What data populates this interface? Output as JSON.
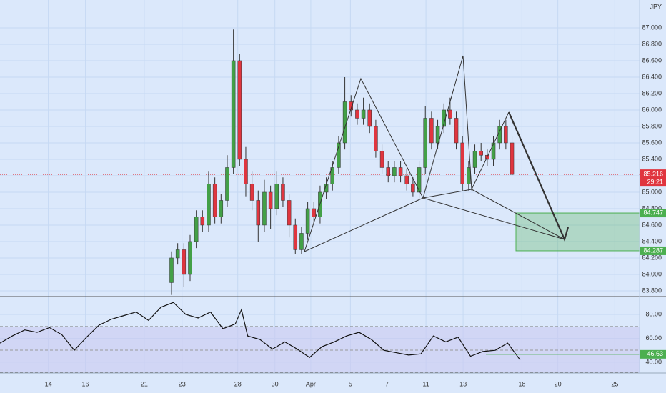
{
  "chart_data": [
    {
      "type": "candlestick",
      "currency": "JPY",
      "x": [
        0,
        1,
        2,
        3,
        4,
        5,
        6,
        7,
        8,
        9,
        10,
        11,
        12,
        13,
        14,
        15,
        16,
        17,
        18,
        19,
        20,
        21,
        22,
        23,
        24,
        25,
        26,
        27,
        28,
        29,
        30,
        31,
        32,
        33,
        34,
        35,
        36,
        37,
        38,
        39,
        40,
        41,
        42,
        43,
        44,
        45,
        46,
        47,
        48,
        49,
        50,
        51,
        52,
        53,
        54,
        55
      ],
      "open": [
        83.9,
        84.2,
        84.3,
        84.0,
        84.4,
        84.7,
        84.6,
        85.1,
        84.7,
        84.9,
        85.3,
        86.6,
        85.4,
        85.1,
        84.9,
        84.6,
        85.0,
        84.8,
        85.1,
        84.9,
        84.6,
        84.3,
        84.5,
        84.8,
        84.7,
        85.0,
        85.1,
        85.3,
        85.6,
        86.1,
        86.0,
        85.9,
        86.0,
        85.8,
        85.5,
        85.3,
        85.2,
        85.3,
        85.2,
        85.1,
        85.0,
        85.3,
        85.9,
        85.6,
        85.8,
        86.0,
        85.9,
        85.6,
        85.1,
        85.3,
        85.5,
        85.45,
        85.4,
        85.6,
        85.8,
        85.6
      ],
      "high": [
        84.28,
        84.38,
        84.38,
        84.48,
        84.78,
        84.78,
        85.25,
        85.18,
        84.98,
        85.45,
        86.98,
        86.68,
        85.55,
        85.25,
        85.02,
        85.15,
        85.08,
        85.25,
        85.18,
        84.98,
        84.68,
        84.58,
        84.88,
        84.88,
        85.08,
        85.18,
        85.38,
        85.68,
        86.4,
        86.18,
        86.08,
        86.15,
        86.08,
        85.88,
        85.58,
        85.38,
        85.38,
        85.38,
        85.28,
        85.18,
        85.38,
        86.05,
        85.98,
        85.88,
        86.08,
        86.15,
        85.98,
        85.68,
        85.38,
        85.58,
        85.6,
        85.52,
        85.68,
        85.88,
        85.88,
        85.68
      ],
      "low": [
        83.75,
        84.12,
        83.85,
        83.92,
        84.32,
        84.52,
        84.52,
        84.62,
        84.62,
        84.82,
        85.22,
        85.32,
        84.95,
        84.78,
        84.4,
        84.52,
        84.55,
        84.72,
        84.82,
        84.45,
        84.25,
        84.25,
        84.42,
        84.62,
        84.62,
        84.92,
        85.02,
        85.22,
        85.52,
        85.92,
        85.82,
        85.82,
        85.72,
        85.42,
        85.22,
        85.12,
        85.12,
        85.12,
        85.02,
        84.95,
        84.92,
        85.22,
        85.52,
        85.52,
        85.72,
        85.82,
        85.52,
        85.02,
        85.02,
        85.22,
        85.38,
        85.32,
        85.32,
        85.52,
        85.52,
        85.2
      ],
      "close": [
        84.2,
        84.3,
        84.0,
        84.4,
        84.7,
        84.6,
        85.1,
        84.7,
        84.9,
        85.3,
        86.6,
        85.4,
        85.1,
        84.9,
        84.6,
        85.0,
        84.8,
        85.1,
        84.9,
        84.6,
        84.3,
        84.5,
        84.8,
        84.7,
        85.0,
        85.1,
        85.3,
        85.6,
        86.1,
        86.0,
        85.9,
        86.0,
        85.8,
        85.5,
        85.3,
        85.2,
        85.3,
        85.2,
        85.1,
        85.0,
        85.3,
        85.9,
        85.6,
        85.8,
        86.0,
        85.9,
        85.6,
        85.1,
        85.3,
        85.5,
        85.45,
        85.4,
        85.6,
        85.8,
        85.6,
        85.216
      ],
      "up_color": "#43a047",
      "down_color": "#e0353f",
      "last_price": 85.216,
      "countdown": "29:21",
      "zone": {
        "top": 84.747,
        "bottom": 84.287,
        "color": "#4caf50"
      },
      "ylim": [
        83.73,
        87.339
      ],
      "yticks": [
        {
          "value": 83.8,
          "label": "83.800"
        },
        {
          "value": 84.0,
          "label": "84.000"
        },
        {
          "value": 84.2,
          "label": "84.200"
        },
        {
          "value": 84.4,
          "label": "84.400"
        },
        {
          "value": 84.6,
          "label": "84.600"
        },
        {
          "value": 84.8,
          "label": "84.800"
        },
        {
          "value": 85.0,
          "label": "85.000"
        },
        {
          "value": 85.2,
          "label": "85.200"
        },
        {
          "value": 85.4,
          "label": "85.400"
        },
        {
          "value": 85.6,
          "label": "85.600"
        },
        {
          "value": 85.8,
          "label": "85.800"
        },
        {
          "value": 86.0,
          "label": "86.000"
        },
        {
          "value": 86.2,
          "label": "86.200"
        },
        {
          "value": 86.4,
          "label": "86.400"
        },
        {
          "value": 86.6,
          "label": "86.600"
        },
        {
          "value": 86.8,
          "label": "86.800"
        },
        {
          "value": 87.0,
          "label": "87.000"
        }
      ],
      "xlim": [
        -27.7,
        75.6
      ],
      "xticks": [
        {
          "value": -19.9,
          "label": "14"
        },
        {
          "value": -13.9,
          "label": "16"
        },
        {
          "value": -4.4,
          "label": "21"
        },
        {
          "value": 1.7,
          "label": "23"
        },
        {
          "value": 10.7,
          "label": "28"
        },
        {
          "value": 16.7,
          "label": "30"
        },
        {
          "value": 22.5,
          "label": "Apr"
        },
        {
          "value": 28.9,
          "label": "5"
        },
        {
          "value": 34.8,
          "label": "7"
        },
        {
          "value": 41.1,
          "label": "11"
        },
        {
          "value": 47.1,
          "label": "13"
        },
        {
          "value": 56.6,
          "label": "18"
        },
        {
          "value": 62.4,
          "label": "20"
        },
        {
          "value": 71.6,
          "label": "25"
        }
      ],
      "grid": true
    },
    {
      "type": "line",
      "x": [
        -27.7,
        -25.7,
        -23.7,
        -21.7,
        -19.7,
        -17.7,
        -15.7,
        -13.7,
        -11.7,
        -9.7,
        -7.7,
        -5.7,
        -3.7,
        -1.7,
        0.3,
        2.3,
        4.3,
        6.3,
        8.3,
        10.3,
        11.3,
        12.3,
        14.3,
        16.3,
        18.3,
        20.3,
        22.3,
        24.3,
        26.3,
        28.3,
        30.3,
        32.3,
        34.3,
        36.3,
        38.3,
        40.3,
        42.3,
        44.3,
        46.3,
        48.3,
        50.3,
        52.3,
        54.3,
        56.3
      ],
      "values": [
        56,
        62,
        67,
        65,
        69,
        63,
        50,
        61,
        71,
        76,
        79,
        82,
        75,
        86,
        90,
        80,
        77,
        82,
        68,
        72,
        84,
        62,
        59,
        51,
        57,
        51,
        44,
        53,
        57,
        62,
        65,
        59,
        50,
        48,
        46,
        47,
        62,
        57,
        61,
        45,
        49,
        50,
        56,
        42
      ],
      "color": "#111111",
      "ma_value": 46.63,
      "ma_color": "#4caf50",
      "ylim": [
        31,
        94.3
      ],
      "yticks": [
        {
          "value": 40,
          "label": "40.00"
        },
        {
          "value": 60,
          "label": "60.00"
        },
        {
          "value": 80,
          "label": "80.00"
        }
      ]
    }
  ]
}
